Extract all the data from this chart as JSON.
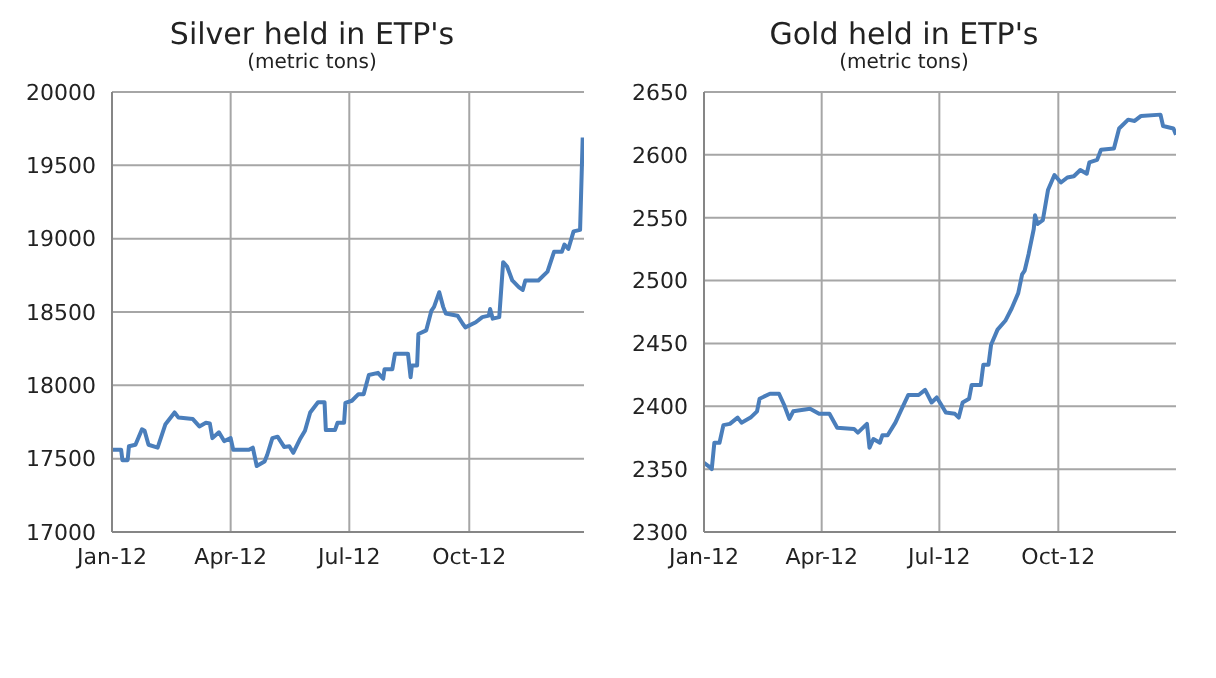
{
  "chart_data": [
    {
      "type": "line",
      "title": "Silver held in ETP's",
      "subtitle": "(metric tons)",
      "color": "#4a7ebb",
      "grid": true,
      "x": [
        "2012-01-01",
        "2012-01-08",
        "2012-01-09",
        "2012-01-13",
        "2012-01-14",
        "2012-01-19",
        "2012-01-24",
        "2012-01-26",
        "2012-01-29",
        "2012-02-05",
        "2012-02-11",
        "2012-02-18",
        "2012-02-21",
        "2012-03-03",
        "2012-03-08",
        "2012-03-13",
        "2012-03-16",
        "2012-03-18",
        "2012-03-23",
        "2012-03-27",
        "2012-04-01",
        "2012-04-03",
        "2012-04-15",
        "2012-04-18",
        "2012-04-21",
        "2012-04-27",
        "2012-04-29",
        "2012-05-03",
        "2012-05-07",
        "2012-05-12",
        "2012-05-16",
        "2012-05-19",
        "2012-05-24",
        "2012-05-28",
        "2012-06-01",
        "2012-06-07",
        "2012-06-12",
        "2012-06-13",
        "2012-06-20",
        "2012-06-22",
        "2012-06-27",
        "2012-06-28",
        "2012-07-03",
        "2012-07-08",
        "2012-07-12",
        "2012-07-16",
        "2012-07-23",
        "2012-07-27",
        "2012-07-28",
        "2012-08-03",
        "2012-08-05",
        "2012-08-15",
        "2012-08-17",
        "2012-08-18",
        "2012-08-22",
        "2012-08-23",
        "2012-08-29",
        "2012-09-02",
        "2012-09-04",
        "2012-09-08",
        "2012-09-11",
        "2012-09-13",
        "2012-09-22",
        "2012-09-26",
        "2012-09-28",
        "2012-10-06",
        "2012-10-11",
        "2012-10-16",
        "2012-10-17",
        "2012-10-19",
        "2012-10-24",
        "2012-10-27",
        "2012-10-30",
        "2012-11-03",
        "2012-11-08",
        "2012-11-11",
        "2012-11-13",
        "2012-11-23",
        "2012-11-30",
        "2012-12-05",
        "2012-12-11",
        "2012-12-13",
        "2012-12-16",
        "2012-12-20",
        "2012-12-25",
        "2012-12-27"
      ],
      "values": [
        17560,
        17560,
        17490,
        17490,
        17585,
        17595,
        17700,
        17690,
        17595,
        17575,
        17735,
        17815,
        17780,
        17770,
        17720,
        17745,
        17740,
        17640,
        17680,
        17620,
        17640,
        17560,
        17560,
        17575,
        17450,
        17480,
        17525,
        17640,
        17650,
        17580,
        17585,
        17540,
        17630,
        17690,
        17815,
        17885,
        17885,
        17695,
        17695,
        17745,
        17745,
        17880,
        17895,
        17940,
        17940,
        18070,
        18085,
        18045,
        18110,
        18110,
        18215,
        18215,
        18055,
        18135,
        18135,
        18350,
        18375,
        18510,
        18535,
        18635,
        18535,
        18490,
        18475,
        18420,
        18395,
        18430,
        18465,
        18475,
        18520,
        18455,
        18465,
        18840,
        18810,
        18715,
        18670,
        18650,
        18715,
        18715,
        18775,
        18910,
        18910,
        18960,
        18930,
        19050,
        19060,
        19690
      ],
      "xlim": [
        "2012-01-01",
        "2012-12-28"
      ],
      "xticks": [
        {
          "value": "2012-01-01",
          "label": "Jan-12"
        },
        {
          "value": "2012-04-01",
          "label": "Apr-12"
        },
        {
          "value": "2012-07-01",
          "label": "Jul-12"
        },
        {
          "value": "2012-10-01",
          "label": "Oct-12"
        }
      ],
      "ylim": [
        17000,
        20000
      ],
      "yticks": [
        17000,
        17500,
        18000,
        18500,
        19000,
        19500,
        20000
      ]
    },
    {
      "type": "line",
      "title": "Gold held in ETP's",
      "subtitle": "(metric tons)",
      "color": "#4a7ebb",
      "grid": true,
      "x": [
        "2012-01-01",
        "2012-01-05",
        "2012-01-07",
        "2012-01-09",
        "2012-01-13",
        "2012-01-16",
        "2012-01-21",
        "2012-01-27",
        "2012-01-30",
        "2012-02-06",
        "2012-02-11",
        "2012-02-13",
        "2012-02-21",
        "2012-02-28",
        "2012-03-03",
        "2012-03-07",
        "2012-03-10",
        "2012-03-23",
        "2012-03-30",
        "2012-04-07",
        "2012-04-13",
        "2012-04-26",
        "2012-04-29",
        "2012-05-06",
        "2012-05-08",
        "2012-05-11",
        "2012-05-16",
        "2012-05-18",
        "2012-05-22",
        "2012-05-28",
        "2012-06-01",
        "2012-06-07",
        "2012-06-15",
        "2012-06-20",
        "2012-06-25",
        "2012-06-29",
        "2012-07-02",
        "2012-07-06",
        "2012-07-13",
        "2012-07-16",
        "2012-07-19",
        "2012-07-24",
        "2012-07-26",
        "2012-08-02",
        "2012-08-04",
        "2012-08-08",
        "2012-08-10",
        "2012-08-15",
        "2012-08-21",
        "2012-08-26",
        "2012-08-31",
        "2012-09-03",
        "2012-09-05",
        "2012-09-08",
        "2012-09-12",
        "2012-09-13",
        "2012-09-15",
        "2012-09-19",
        "2012-09-23",
        "2012-09-28",
        "2012-10-03",
        "2012-10-08",
        "2012-10-13",
        "2012-10-18",
        "2012-10-23",
        "2012-10-25",
        "2012-10-31",
        "2012-11-03",
        "2012-11-13",
        "2012-11-17",
        "2012-11-24",
        "2012-11-29",
        "2012-12-04",
        "2012-12-19",
        "2012-12-21",
        "2012-12-29",
        "2012-12-31"
      ],
      "values": [
        2355,
        2352,
        2350,
        2371,
        2371,
        2385,
        2386,
        2391,
        2387,
        2391,
        2396,
        2406,
        2410,
        2410,
        2401,
        2390,
        2396,
        2398,
        2394,
        2394,
        2383,
        2382,
        2379,
        2386,
        2367,
        2374,
        2371,
        2377,
        2377,
        2387,
        2396,
        2409,
        2409,
        2413,
        2403,
        2407,
        2402,
        2395,
        2394,
        2391,
        2403,
        2406,
        2417,
        2417,
        2433,
        2433,
        2449,
        2461,
        2468,
        2478,
        2490,
        2505,
        2508,
        2521,
        2541,
        2552,
        2545,
        2548,
        2572,
        2584,
        2578,
        2582,
        2583,
        2588,
        2585,
        2594,
        2596,
        2604,
        2605,
        2621,
        2628,
        2627,
        2631,
        2632,
        2623,
        2621,
        2616
      ],
      "xlim": [
        "2012-01-01",
        "2012-12-31"
      ],
      "xticks": [
        {
          "value": "2012-01-01",
          "label": "Jan-12"
        },
        {
          "value": "2012-04-01",
          "label": "Apr-12"
        },
        {
          "value": "2012-07-01",
          "label": "Jul-12"
        },
        {
          "value": "2012-10-01",
          "label": "Oct-12"
        }
      ],
      "ylim": [
        2300,
        2650
      ],
      "yticks": [
        2300,
        2350,
        2400,
        2450,
        2500,
        2550,
        2600,
        2650
      ]
    }
  ]
}
